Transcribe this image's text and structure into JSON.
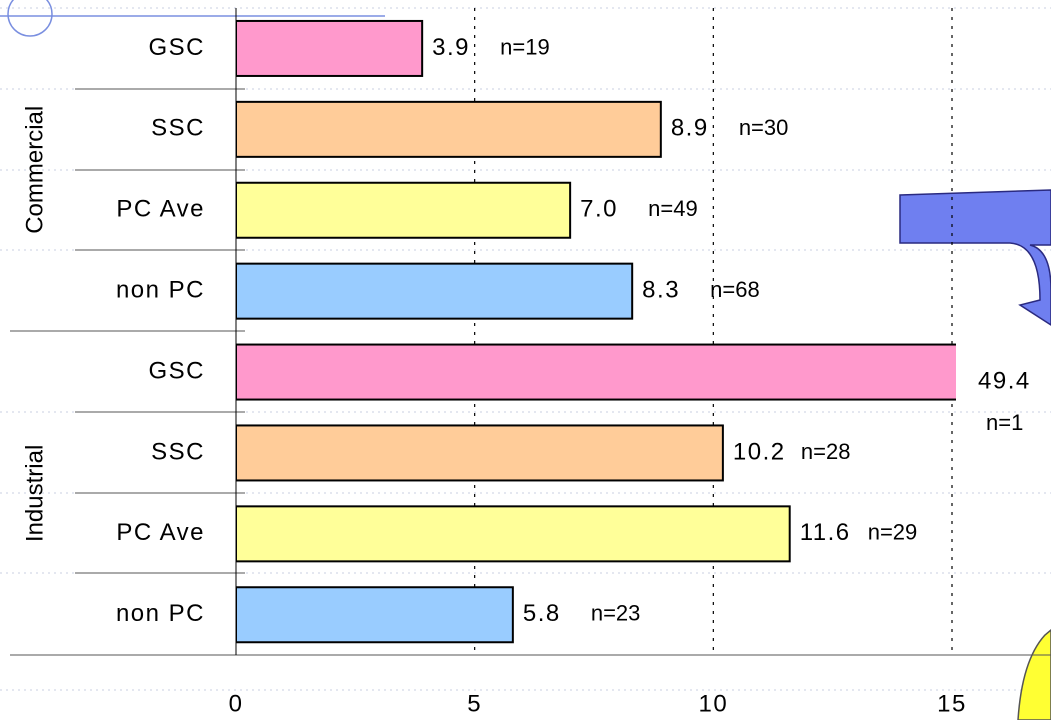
{
  "chart_data": {
    "type": "bar",
    "categories": [
      "GSC",
      "SSC",
      "PC Ave",
      "non PC",
      "GSC",
      "SSC",
      "PC Ave",
      "non PC"
    ],
    "groups": [
      {
        "name": "Commercial",
        "size": 4
      },
      {
        "name": "Industrial",
        "size": 4
      }
    ],
    "values": [
      3.9,
      8.9,
      7.0,
      8.3,
      49.4,
      10.2,
      11.6,
      5.8
    ],
    "value_labels": [
      "3.9",
      "8.9",
      "7.0",
      "8.3",
      "49.4",
      "10.2",
      "11.6",
      "5.8"
    ],
    "n_labels": [
      "n=19",
      "n=30",
      "n=49",
      "n=68",
      "n=1",
      "n=28",
      "n=29",
      "n=23"
    ],
    "colors": [
      "#ff99cc",
      "#ffcc99",
      "#ffff99",
      "#99ccff",
      "#ff99cc",
      "#ffcc99",
      "#ffff99",
      "#99ccff"
    ],
    "xlim": [
      0,
      15
    ],
    "xticks": [
      0,
      5,
      10,
      15
    ],
    "grid": true
  }
}
